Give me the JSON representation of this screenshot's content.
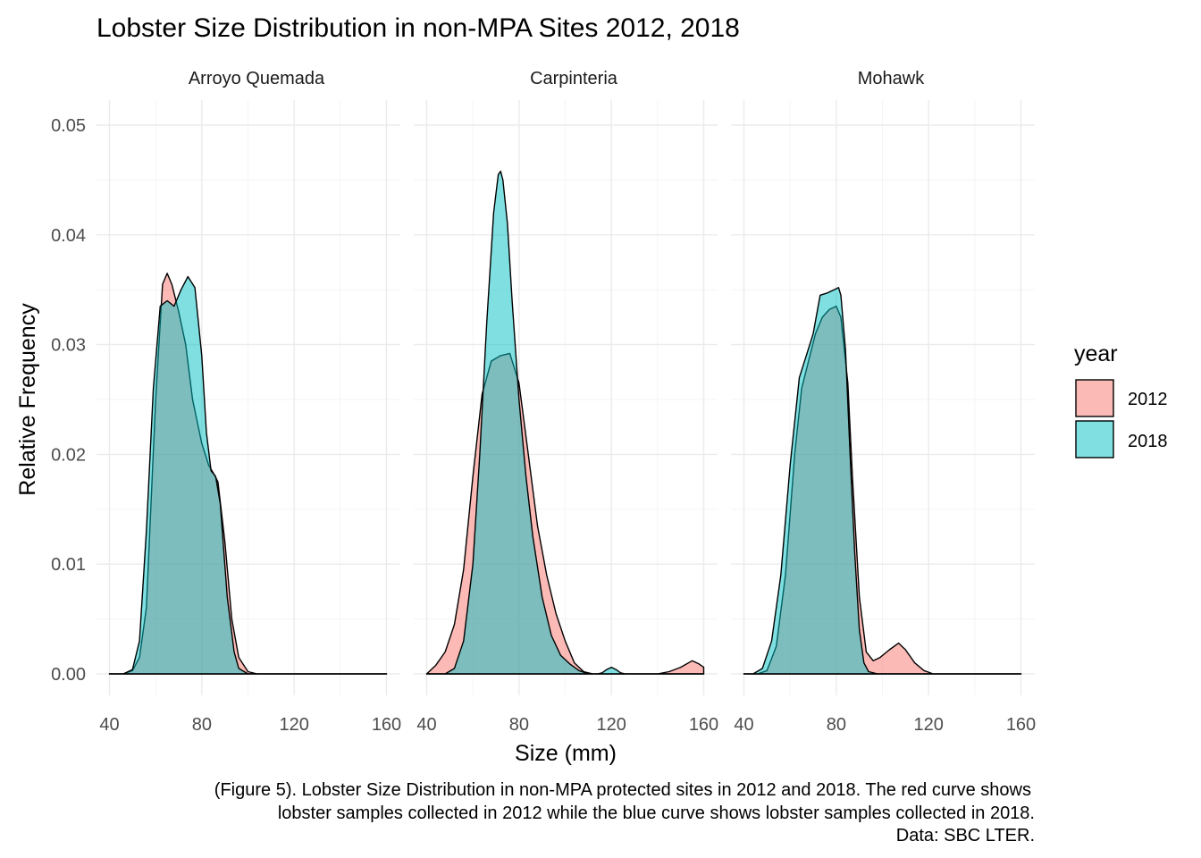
{
  "chart_data": {
    "type": "area",
    "title": "Lobster Size Distribution in non-MPA Sites 2012, 2018",
    "xlabel": "Size (mm)",
    "ylabel": "Relative Frequency",
    "xlim": [
      40,
      160
    ],
    "ylim": [
      0,
      0.05
    ],
    "x_ticks": [
      "40",
      "80",
      "120",
      "160"
    ],
    "y_ticks": [
      "0.00",
      "0.01",
      "0.02",
      "0.03",
      "0.04",
      "0.05"
    ],
    "grid": true,
    "legend": {
      "title": "year",
      "position": "right",
      "entries": [
        {
          "label": "2012",
          "color": "#F8766D"
        },
        {
          "label": "2018",
          "color": "#00BFC4"
        }
      ]
    },
    "caption": [
      "(Figure 5). Lobster Size Distribution in non-MPA protected sites in 2012 and 2018. The red curve shows",
      "lobster samples collected in 2012 while the blue curve shows lobster samples collected in 2018.",
      "Data: SBC LTER."
    ],
    "panels": [
      {
        "site": "Arroyo Quemada",
        "series": [
          {
            "name": "2012",
            "color": "#F8766D",
            "x": [
              40,
              46,
              50,
              53,
              56,
              60,
              63,
              65,
              67,
              70,
              73,
              76,
              80,
              83,
              85,
              87,
              90,
              93,
              96,
              100,
              104,
              110,
              160
            ],
            "y": [
              0,
              0,
              0.0003,
              0.0015,
              0.006,
              0.025,
              0.0355,
              0.0365,
              0.0355,
              0.033,
              0.03,
              0.025,
              0.021,
              0.019,
              0.0183,
              0.0175,
              0.012,
              0.005,
              0.0015,
              0.0002,
              0,
              0,
              0
            ]
          },
          {
            "name": "2018",
            "color": "#00BFC4",
            "x": [
              40,
              46,
              50,
              53,
              56,
              59,
              62,
              65,
              68,
              71,
              74,
              77,
              80,
              82,
              84,
              86,
              88,
              91,
              94,
              96,
              100,
              110,
              160
            ],
            "y": [
              0,
              0,
              0.0004,
              0.003,
              0.013,
              0.026,
              0.0335,
              0.034,
              0.0335,
              0.035,
              0.0362,
              0.0352,
              0.029,
              0.022,
              0.0185,
              0.018,
              0.0155,
              0.007,
              0.002,
              0.0005,
              0,
              0,
              0
            ]
          }
        ]
      },
      {
        "site": "Carpinteria",
        "series": [
          {
            "name": "2012",
            "color": "#F8766D",
            "x": [
              40,
              44,
              48,
              52,
              56,
              60,
              64,
              68,
              72,
              76,
              80,
              84,
              88,
              92,
              96,
              100,
              104,
              108,
              112,
              120,
              130,
              140,
              145,
              150,
              155,
              158,
              160
            ],
            "y": [
              0,
              0.0008,
              0.002,
              0.0045,
              0.0095,
              0.018,
              0.0255,
              0.0285,
              0.029,
              0.0292,
              0.0265,
              0.02,
              0.0135,
              0.009,
              0.0055,
              0.003,
              0.001,
              0.0002,
              0,
              0,
              0,
              0,
              0.0002,
              0.0006,
              0.0012,
              0.0009,
              0.0006
            ]
          },
          {
            "name": "2018",
            "color": "#00BFC4",
            "x": [
              40,
              48,
              52,
              56,
              60,
              63,
              66,
              69,
              71,
              72,
              73,
              75,
              77,
              80,
              83,
              86,
              90,
              94,
              98,
              102,
              106,
              110,
              114,
              116,
              118,
              120,
              122,
              124,
              126,
              160
            ],
            "y": [
              0,
              0,
              0.0005,
              0.003,
              0.01,
              0.02,
              0.032,
              0.042,
              0.0455,
              0.0458,
              0.045,
              0.041,
              0.034,
              0.025,
              0.018,
              0.0125,
              0.007,
              0.0035,
              0.0017,
              0.0009,
              0.0003,
              0,
              0,
              0.0001,
              0.0004,
              0.0006,
              0.0004,
              0.0001,
              0,
              0
            ]
          }
        ]
      },
      {
        "site": "Mohawk",
        "series": [
          {
            "name": "2012",
            "color": "#F8766D",
            "x": [
              40,
              46,
              50,
              54,
              58,
              62,
              65,
              68,
              71,
              74,
              77,
              80,
              82,
              85,
              87,
              90,
              93,
              96,
              99,
              103,
              107,
              110,
              114,
              118,
              122,
              160
            ],
            "y": [
              0,
              0,
              0.0003,
              0.0025,
              0.009,
              0.02,
              0.026,
              0.0285,
              0.031,
              0.0325,
              0.0332,
              0.0335,
              0.0325,
              0.0265,
              0.018,
              0.007,
              0.002,
              0.0012,
              0.0015,
              0.0022,
              0.0028,
              0.0022,
              0.001,
              0.0003,
              0,
              0
            ]
          },
          {
            "name": "2018",
            "color": "#00BFC4",
            "x": [
              40,
              44,
              48,
              52,
              56,
              60,
              64,
              67,
              70,
              73,
              76,
              79,
              81,
              82,
              84,
              86,
              88,
              90,
              92,
              94,
              98,
              160
            ],
            "y": [
              0,
              0,
              0.0005,
              0.003,
              0.009,
              0.019,
              0.027,
              0.029,
              0.031,
              0.0345,
              0.0347,
              0.035,
              0.0352,
              0.0345,
              0.0295,
              0.02,
              0.011,
              0.004,
              0.001,
              0.0002,
              0,
              0
            ]
          }
        ]
      }
    ]
  }
}
